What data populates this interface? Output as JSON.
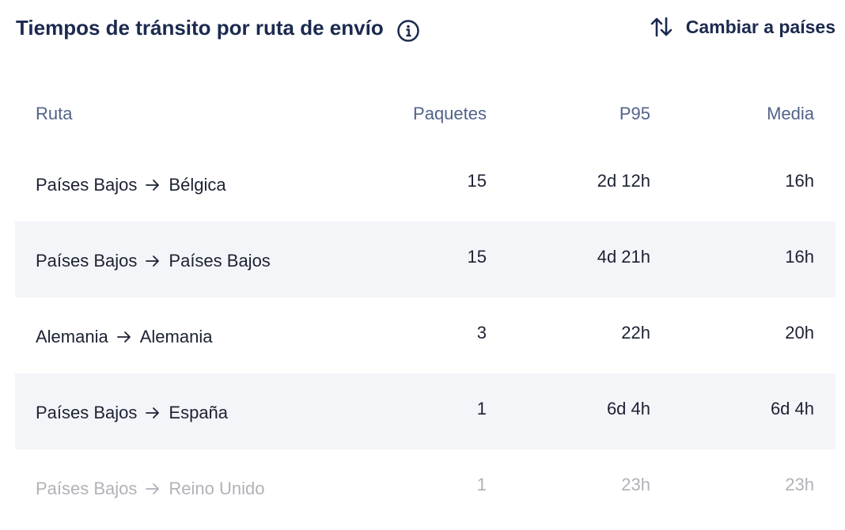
{
  "header": {
    "title": "Tiempos de tránsito por ruta de envío",
    "toggle": "Cambiar a países"
  },
  "table": {
    "columns": [
      "Ruta",
      "Paquetes",
      "P95",
      "Media"
    ],
    "rows": [
      {
        "from": "Países Bajos",
        "to": "Bélgica",
        "packages": 15,
        "p95": "2d 12h",
        "mean": "16h"
      },
      {
        "from": "Países Bajos",
        "to": "Países Bajos",
        "packages": 15,
        "p95": "4d 21h",
        "mean": "16h"
      },
      {
        "from": "Alemania",
        "to": "Alemania",
        "packages": 3,
        "p95": "22h",
        "mean": "20h"
      },
      {
        "from": "Países Bajos",
        "to": "España",
        "packages": 1,
        "p95": "6d 4h",
        "mean": "6d 4h"
      },
      {
        "from": "Países Bajos",
        "to": "Reino Unido",
        "packages": 1,
        "p95": "23h",
        "mean": "23h"
      }
    ]
  }
}
